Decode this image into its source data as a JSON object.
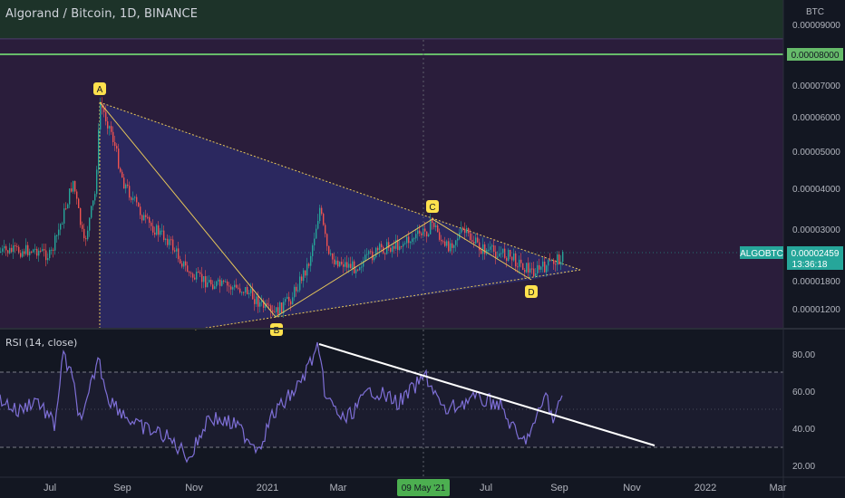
{
  "header": {
    "title": "Algorand / Bitcoin, 1D, BINANCE"
  },
  "price_axis": {
    "unit": "BTC",
    "ticks": [
      "0.00009000",
      "0.00008000",
      "0.00007000",
      "0.00006000",
      "0.00005000",
      "0.00004000",
      "0.00003000",
      "0.00002459",
      "0.00001800",
      "0.00001200"
    ],
    "highlight_level": "0.00008000",
    "symbol_tag": "ALGOBTC",
    "last_price": "0.00002459",
    "countdown": "13:36:18"
  },
  "rsi": {
    "label": "RSI (14, close)",
    "ticks": [
      "80.00",
      "60.00",
      "40.00",
      "20.00"
    ]
  },
  "time_axis": {
    "labels": [
      "Jul",
      "Sep",
      "Nov",
      "2021",
      "Mar",
      "May",
      "Jul",
      "Sep",
      "Nov",
      "2022",
      "Mar"
    ],
    "crosshair_label": "09 May '21"
  },
  "pattern_points": [
    "A",
    "B",
    "C",
    "D"
  ],
  "colors": {
    "background": "#131722",
    "price_zone": "#2a1d3c",
    "upper_zone": "#1f3a2c",
    "green_line": "#66bb6a",
    "pattern_fill": "#2c2e6e",
    "pattern_line": "#e8c85a",
    "point_badge": "#ffe14d",
    "rsi_line": "#7e6fd6",
    "trend_line": "#ffffff",
    "last_price_tag": "#26a69a"
  }
}
